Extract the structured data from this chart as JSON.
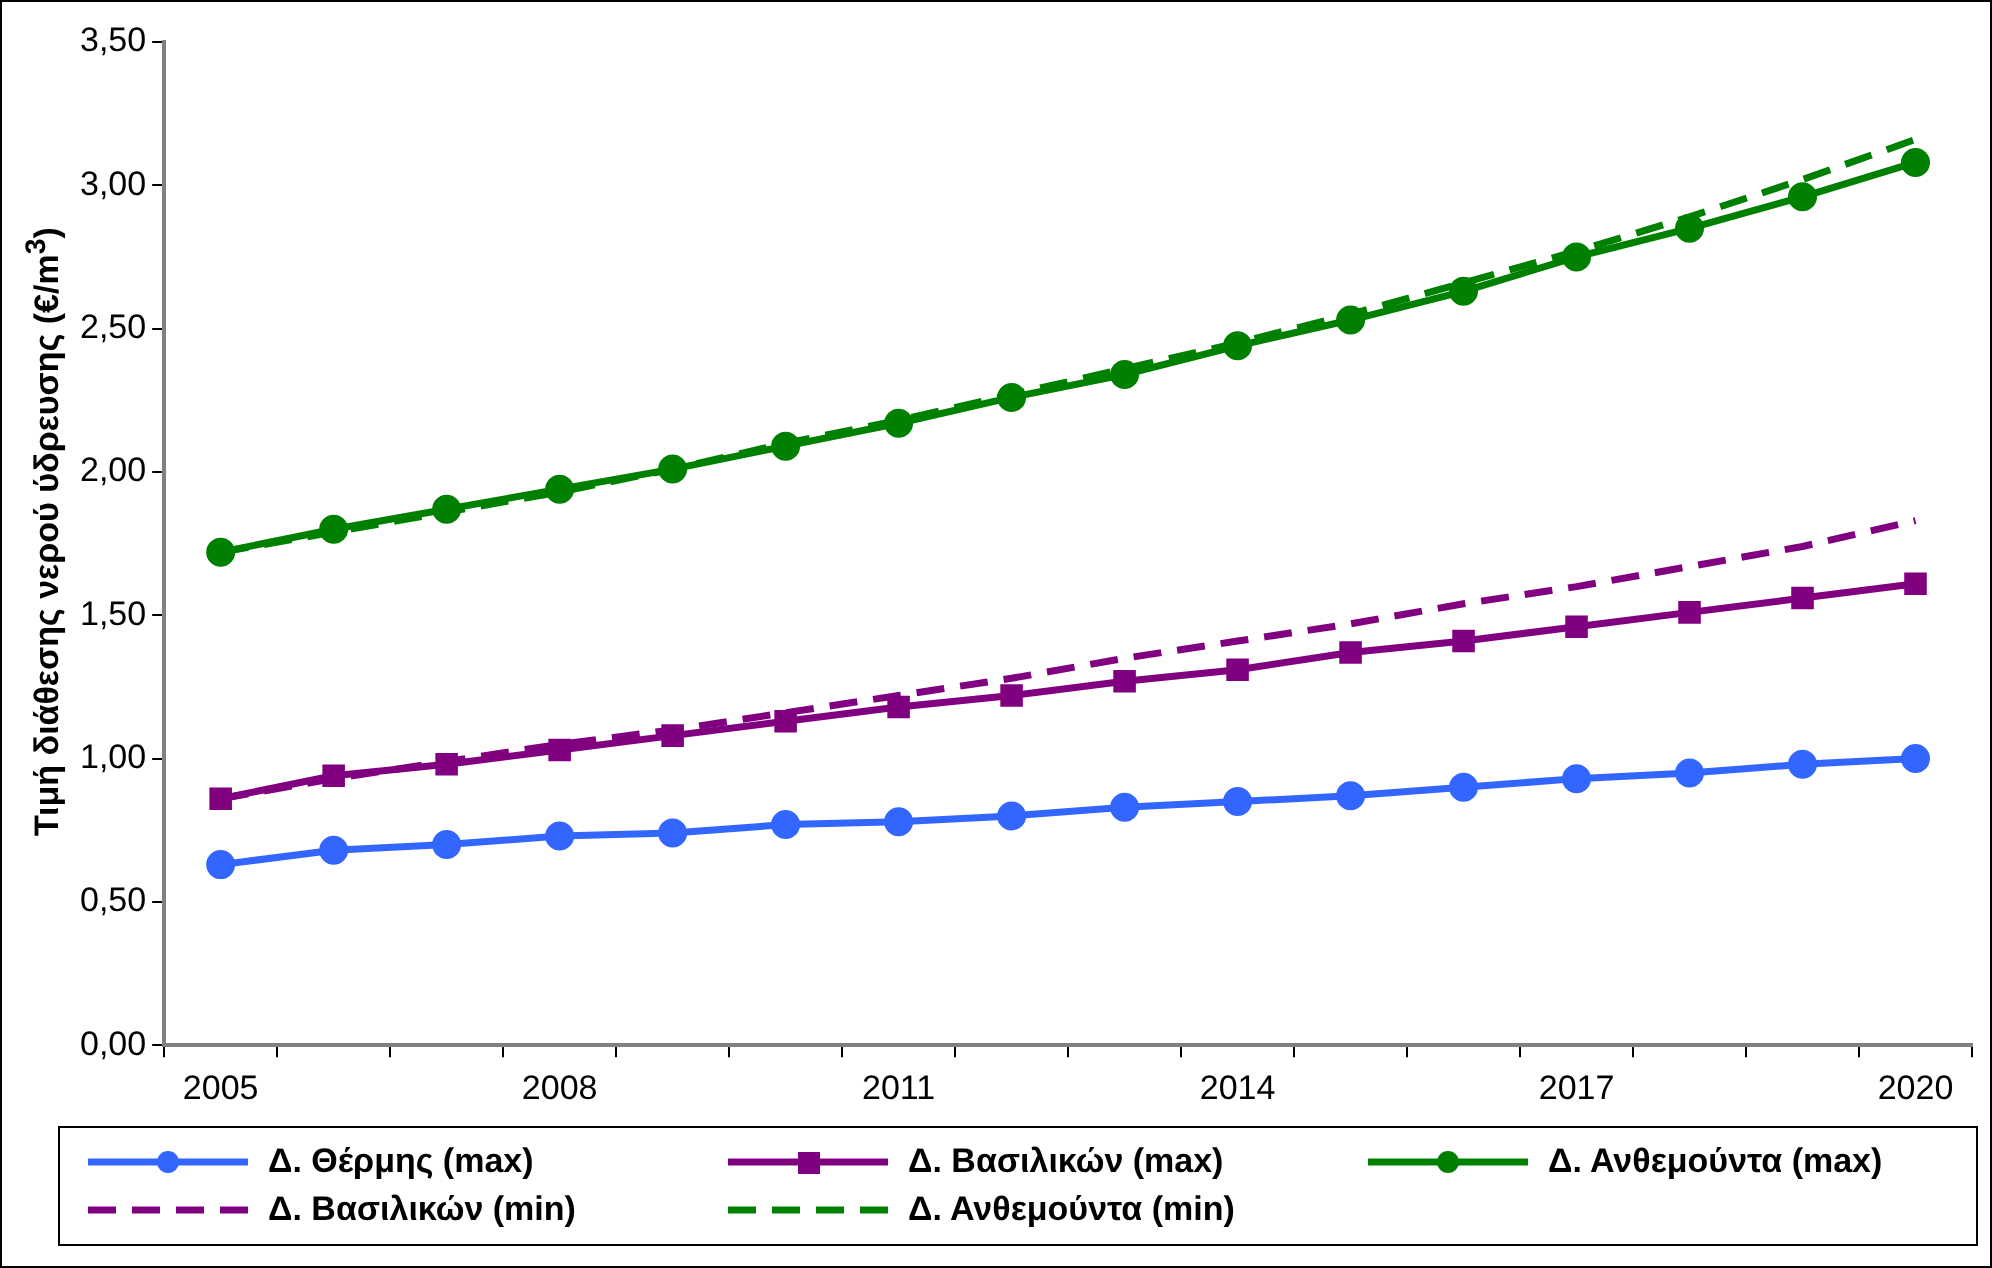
{
  "chart_data": {
    "type": "line",
    "ylabel": "Τιμή διάθεσης νερού ύδρευσης (€/m$^{3}$)",
    "categories": [
      "2005",
      null,
      null,
      "2008",
      null,
      null,
      "2011",
      null,
      null,
      "2014",
      null,
      null,
      "2017",
      null,
      null,
      "2020"
    ],
    "ylim": [
      0,
      3.5
    ],
    "yticks": [
      {
        "value": 0,
        "label": "0,00"
      },
      {
        "value": 0.5,
        "label": "0,50"
      },
      {
        "value": 1,
        "label": "1,00"
      },
      {
        "value": 1.5,
        "label": "1,50"
      },
      {
        "value": 2,
        "label": "2,00"
      },
      {
        "value": 2.5,
        "label": "2,50"
      },
      {
        "value": 3,
        "label": "3,00"
      },
      {
        "value": 3.5,
        "label": "3,50"
      }
    ],
    "grid": false,
    "legend": "bottom",
    "series": [
      {
        "name": "Δ. Θέρμης (max)",
        "color": "#3366ff",
        "marker": "circle",
        "line_style": "solid",
        "values": [
          0.63,
          0.68,
          0.7,
          0.73,
          0.74,
          0.77,
          0.78,
          0.8,
          0.83,
          0.85,
          0.87,
          0.9,
          0.93,
          0.95,
          0.98,
          1.0
        ]
      },
      {
        "name": "Δ. Βασιλικών (max)",
        "color": "#800080",
        "marker": "square",
        "line_style": "solid",
        "values": [
          0.86,
          0.94,
          0.98,
          1.03,
          1.08,
          1.13,
          1.18,
          1.22,
          1.27,
          1.31,
          1.37,
          1.41,
          1.46,
          1.51,
          1.56,
          1.61
        ]
      },
      {
        "name": "Δ. Ανθεμούντα (max)",
        "color": "#008000",
        "marker": "circle",
        "line_style": "solid",
        "values": [
          1.72,
          1.8,
          1.87,
          1.94,
          2.01,
          2.09,
          2.17,
          2.26,
          2.34,
          2.44,
          2.53,
          2.63,
          2.75,
          2.85,
          2.96,
          3.08
        ]
      },
      {
        "name": "Δ. Βασιλικών (min)",
        "color": "#800080",
        "marker": "none",
        "line_style": "dashed",
        "values": [
          0.86,
          0.93,
          0.99,
          1.05,
          1.1,
          1.16,
          1.22,
          1.28,
          1.35,
          1.41,
          1.47,
          1.54,
          1.6,
          1.67,
          1.74,
          1.83
        ]
      },
      {
        "name": "Δ. Ανθεμούντα (min)",
        "color": "#008000",
        "marker": "none",
        "line_style": "dashed",
        "values": [
          1.72,
          1.79,
          1.86,
          1.93,
          2.01,
          2.1,
          2.18,
          2.27,
          2.36,
          2.45,
          2.55,
          2.66,
          2.77,
          2.89,
          3.02,
          3.16
        ]
      }
    ]
  }
}
